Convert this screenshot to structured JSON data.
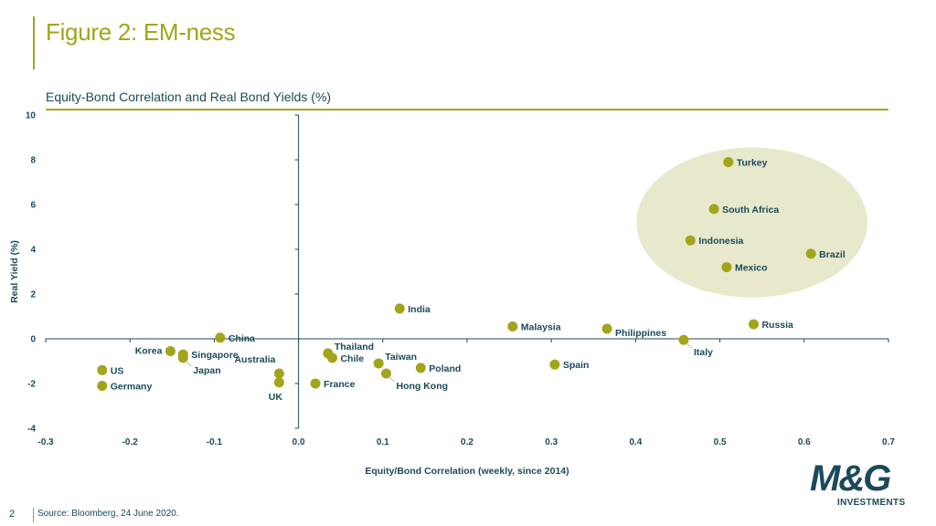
{
  "slide": {
    "title": "Figure 2: EM-ness",
    "page_number": "2",
    "source": "Source: Bloomberg,  24 June 2020."
  },
  "logo": {
    "main": "M&G",
    "sub": "INVESTMENTS"
  },
  "colors": {
    "accent": "#a2a51a",
    "text": "#1c4a5a",
    "point": "#a2a51a",
    "highlight": "#e7e8cc"
  },
  "chart_data": {
    "type": "scatter",
    "title": "Equity-Bond Correlation and Real Bond Yields (%)",
    "xlabel": "Equity/Bond Correlation (weekly, since 2014)",
    "ylabel": "Real Yield (%)",
    "xlim": [
      -0.3,
      0.7
    ],
    "ylim": [
      -4,
      10
    ],
    "xticks": [
      -0.3,
      -0.2,
      -0.1,
      0.0,
      0.1,
      0.2,
      0.3,
      0.4,
      0.5,
      0.6,
      0.7
    ],
    "yticks": [
      -4,
      -2,
      0,
      2,
      4,
      6,
      8,
      10
    ],
    "xtick_labels": [
      "-0.3",
      "-0.2",
      "-0.1",
      "0.0",
      "0.1",
      "0.2",
      "0.3",
      "0.4",
      "0.5",
      "0.6",
      "0.7"
    ],
    "ytick_labels": [
      "-4",
      "-2",
      "0",
      "2",
      "4",
      "6",
      "8",
      "10"
    ],
    "grid": false,
    "points": [
      {
        "label": "Turkey",
        "x": 0.51,
        "y": 7.9,
        "pos": "right"
      },
      {
        "label": "South Africa",
        "x": 0.493,
        "y": 5.8,
        "pos": "right"
      },
      {
        "label": "Indonesia",
        "x": 0.465,
        "y": 4.4,
        "pos": "right"
      },
      {
        "label": "Brazil",
        "x": 0.608,
        "y": 3.8,
        "pos": "right"
      },
      {
        "label": "Mexico",
        "x": 0.508,
        "y": 3.2,
        "pos": "right"
      },
      {
        "label": "India",
        "x": 0.12,
        "y": 1.35,
        "pos": "right"
      },
      {
        "label": "Malaysia",
        "x": 0.254,
        "y": 0.55,
        "pos": "right"
      },
      {
        "label": "Philippines",
        "x": 0.366,
        "y": 0.45,
        "pos": "right-below"
      },
      {
        "label": "Russia",
        "x": 0.54,
        "y": 0.65,
        "pos": "right"
      },
      {
        "label": "Italy",
        "x": 0.457,
        "y": -0.05,
        "pos": "below-right"
      },
      {
        "label": "Spain",
        "x": 0.304,
        "y": -1.15,
        "pos": "right"
      },
      {
        "label": "China",
        "x": -0.093,
        "y": 0.05,
        "pos": "right"
      },
      {
        "label": "Korea",
        "x": -0.152,
        "y": -0.55,
        "pos": "left"
      },
      {
        "label": "Singapore",
        "x": -0.137,
        "y": -0.7,
        "pos": "right"
      },
      {
        "label": "Japan",
        "x": -0.137,
        "y": -0.85,
        "pos": "below-right"
      },
      {
        "label": "US",
        "x": -0.233,
        "y": -1.4,
        "pos": "right"
      },
      {
        "label": "Germany",
        "x": -0.233,
        "y": -2.1,
        "pos": "right"
      },
      {
        "label": "Australia",
        "x": -0.023,
        "y": -1.55,
        "pos": "above-left"
      },
      {
        "label": "UK",
        "x": -0.023,
        "y": -1.95,
        "pos": "below"
      },
      {
        "label": "France",
        "x": 0.02,
        "y": -2.0,
        "pos": "right"
      },
      {
        "label": "Thailand",
        "x": 0.035,
        "y": -0.65,
        "pos": "above-right"
      },
      {
        "label": "Chile",
        "x": 0.04,
        "y": -0.85,
        "pos": "right"
      },
      {
        "label": "Taiwan",
        "x": 0.095,
        "y": -1.1,
        "pos": "above-right"
      },
      {
        "label": "Hong Kong",
        "x": 0.104,
        "y": -1.55,
        "pos": "below-right"
      },
      {
        "label": "Poland",
        "x": 0.145,
        "y": -1.3,
        "pos": "right"
      }
    ],
    "highlight_region": {
      "cx": 0.538,
      "cy": 5.2,
      "rx": 0.137,
      "ry": 3.35
    }
  }
}
